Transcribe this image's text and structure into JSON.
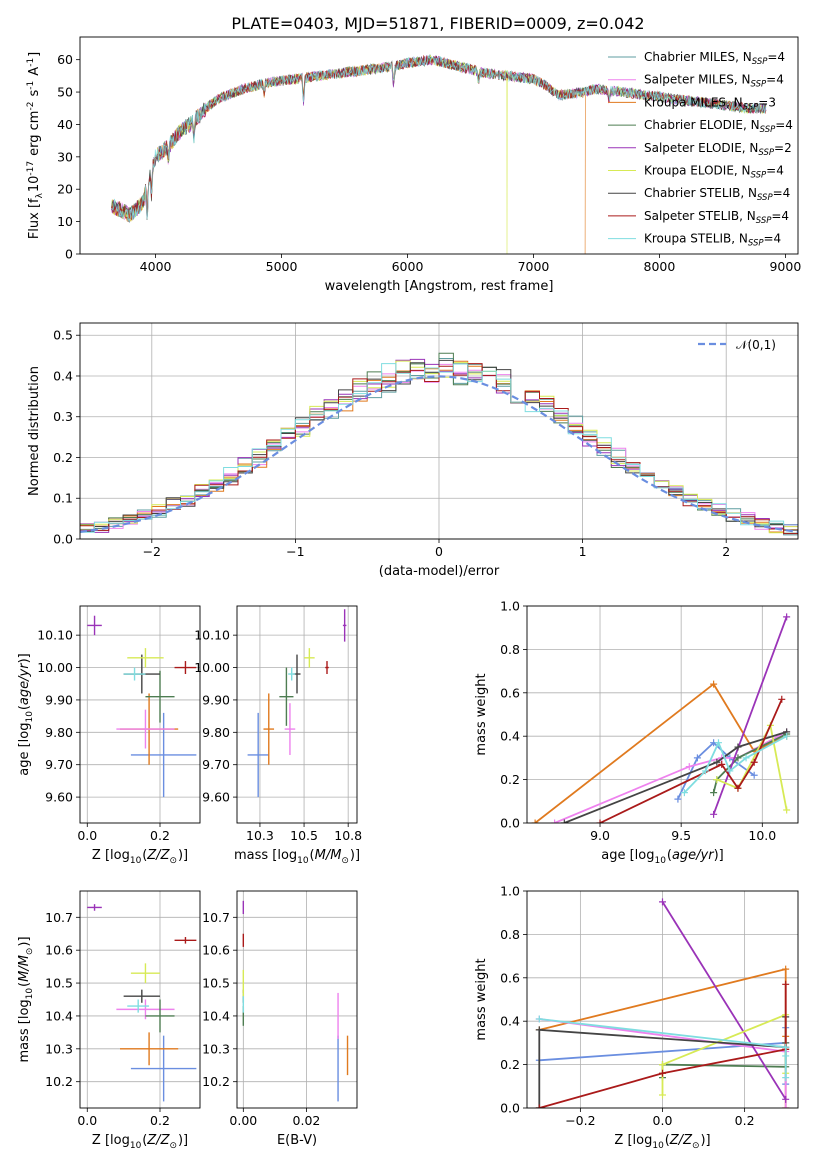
{
  "figure": {
    "title": "PLATE=0403, MJD=51871, FIBERID=0009, z=0.042"
  },
  "models": [
    {
      "name": "Chabrier MILES, N$_{SSP}$=4",
      "main": "Chabrier MILES, N",
      "n": "4",
      "color": "#5f9ea0"
    },
    {
      "name": "Salpeter MILES, N$_{SSP}$=4",
      "main": "Salpeter MILES, N",
      "n": "4",
      "color": "#ee82ee"
    },
    {
      "name": "Kroupa MILES, N$_{SSP}$=3",
      "main": "Kroupa MILES, N",
      "n": "3",
      "color": "#e07a1f"
    },
    {
      "name": "Chabrier ELODIE, N$_{SSP}$=4",
      "main": "Chabrier ELODIE, N",
      "n": "4",
      "color": "#4e7d52"
    },
    {
      "name": "Salpeter ELODIE, N$_{SSP}$=2",
      "main": "Salpeter ELODIE, N",
      "n": "2",
      "color": "#9a33b8"
    },
    {
      "name": "Kroupa ELODIE, N$_{SSP}$=4",
      "main": "Kroupa ELODIE, N",
      "n": "4",
      "color": "#d7ea55"
    },
    {
      "name": "Chabrier STELIB, N$_{SSP}$=4",
      "main": "Chabrier STELIB, N",
      "n": "4",
      "color": "#444444"
    },
    {
      "name": "Salpeter STELIB, N$_{SSP}$=4",
      "main": "Salpeter STELIB, N",
      "n": "4",
      "color": "#aa1a1a"
    },
    {
      "name": "Kroupa STELIB, N$_{SSP}$=4",
      "main": "Kroupa STELIB, N",
      "n": "4",
      "color": "#7fdde0"
    }
  ],
  "subscript_ssp": "SSP",
  "chart_data": [
    {
      "type": "line",
      "id": "spectrum",
      "xlabel": "wavelength [Angstrom, rest frame]",
      "ylabel": "Flux [f$_\\lambda$10$^{-17}$ erg cm$^{-2}$ s$^{-1}$ A$^{-1}$]",
      "xlim": [
        3400,
        9100
      ],
      "ylim": [
        0,
        67
      ],
      "xticks": [
        4000,
        5000,
        6000,
        7000,
        8000,
        9000
      ],
      "yticks": [
        0,
        10,
        20,
        30,
        40,
        50,
        60
      ],
      "legend": "upper right",
      "continuum": {
        "x": [
          3650,
          3800,
          3900,
          3950,
          4000,
          4100,
          4200,
          4300,
          4400,
          4500,
          4700,
          4900,
          5100,
          5300,
          5500,
          5700,
          5900,
          6000,
          6200,
          6400,
          6600,
          6800,
          7000,
          7100,
          7200,
          7400,
          7500,
          7700,
          7900,
          8100,
          8300,
          8500,
          8700,
          8850
        ],
        "y": [
          15,
          12,
          16,
          24,
          30,
          33,
          38,
          41,
          45,
          48,
          51,
          53,
          54,
          55,
          56,
          57,
          58,
          59,
          60,
          58,
          56,
          55,
          54,
          52,
          49,
          50,
          51,
          50,
          49,
          48,
          47,
          46,
          45,
          45
        ]
      },
      "drops": [
        {
          "series": "Kroupa ELODIE, N$_{SSP}$=4",
          "x": 6790
        },
        {
          "series": "Kroupa MILES, N$_{SSP}$=3",
          "x": 7410
        }
      ]
    },
    {
      "type": "step",
      "id": "residuals",
      "xlabel": "(data-model)/error",
      "ylabel": "Normed distribution",
      "xlim": [
        -2.5,
        2.5
      ],
      "ylim": [
        0,
        0.53
      ],
      "xticks": [
        -2,
        -1,
        0,
        1,
        2
      ],
      "yticks": [
        0.0,
        0.1,
        0.2,
        0.3,
        0.4,
        0.5
      ],
      "grid": true,
      "bin_width": 0.1,
      "reference": {
        "label": "$\\mathcal{N}(0,1)$",
        "color": "#6a8ee0"
      },
      "legend": "upper right"
    },
    {
      "type": "scatter",
      "id": "age-vs-Z",
      "xlabel": "Z [log$_{10}$($Z/Z_\\odot$)]",
      "ylabel": "age  [log$_{10}$($age/yr$)]",
      "xlim": [
        -0.02,
        0.31
      ],
      "ylim": [
        9.52,
        10.19
      ],
      "xticks": [
        0.0,
        0.2
      ],
      "yticks": [
        9.6,
        9.7,
        9.8,
        9.9,
        10.0,
        10.1
      ],
      "grid": true,
      "points": [
        {
          "x": 0.21,
          "y": 9.73,
          "xerr": 0.09,
          "yerr": 0.13,
          "color": "#6a8ee0"
        },
        {
          "x": 0.17,
          "y": 9.81,
          "xerr": 0.08,
          "yerr": 0.11,
          "color": "#e07a1f"
        },
        {
          "x": 0.16,
          "y": 9.81,
          "xerr": 0.08,
          "yerr": 0.06,
          "color": "#ee82ee"
        },
        {
          "x": 0.2,
          "y": 9.91,
          "xerr": 0.04,
          "yerr": 0.08,
          "color": "#4e7d52"
        },
        {
          "x": 0.15,
          "y": 9.98,
          "xerr": 0.05,
          "yerr": 0.06,
          "color": "#444444"
        },
        {
          "x": 0.13,
          "y": 9.98,
          "xerr": 0.03,
          "yerr": 0.02,
          "color": "#7fdde0"
        },
        {
          "x": 0.16,
          "y": 10.03,
          "xerr": 0.05,
          "yerr": 0.03,
          "color": "#d7ea55"
        },
        {
          "x": 0.27,
          "y": 10.0,
          "xerr": 0.03,
          "yerr": 0.02,
          "color": "#aa1a1a"
        },
        {
          "x": 0.02,
          "y": 10.13,
          "xerr": 0.02,
          "yerr": 0.03,
          "color": "#9a33b8"
        }
      ]
    },
    {
      "type": "scatter",
      "id": "age-vs-mass",
      "xlabel": "mass [log$_{10}$($M/M_\\odot$)]",
      "ylabel": "",
      "xlim": [
        10.12,
        10.8
      ],
      "ylim": [
        9.52,
        10.19
      ],
      "xticks": [
        10.25,
        10.5,
        10.75
      ],
      "yticks": [
        9.6,
        9.7,
        9.8,
        9.9,
        10.0,
        10.1
      ],
      "grid": true,
      "points": [
        {
          "x": 10.24,
          "y": 9.73,
          "xerr": 0.06,
          "yerr": 0.13,
          "color": "#6a8ee0"
        },
        {
          "x": 10.3,
          "y": 9.81,
          "xerr": 0.03,
          "yerr": 0.11,
          "color": "#e07a1f"
        },
        {
          "x": 10.42,
          "y": 9.81,
          "xerr": 0.03,
          "yerr": 0.08,
          "color": "#ee82ee"
        },
        {
          "x": 10.4,
          "y": 9.91,
          "xerr": 0.04,
          "yerr": 0.09,
          "color": "#4e7d52"
        },
        {
          "x": 10.46,
          "y": 9.98,
          "xerr": 0.02,
          "yerr": 0.06,
          "color": "#444444"
        },
        {
          "x": 10.43,
          "y": 9.98,
          "xerr": 0.02,
          "yerr": 0.02,
          "color": "#7fdde0"
        },
        {
          "x": 10.53,
          "y": 10.03,
          "xerr": 0.03,
          "yerr": 0.03,
          "color": "#d7ea55"
        },
        {
          "x": 10.63,
          "y": 10.0,
          "xerr": 0.01,
          "yerr": 0.02,
          "color": "#aa1a1a"
        },
        {
          "x": 10.73,
          "y": 10.13,
          "xerr": 0.01,
          "yerr": 0.05,
          "color": "#9a33b8"
        }
      ]
    },
    {
      "type": "line",
      "id": "weight-vs-age",
      "xlabel": "age  [log$_{10}$($age/yr$)]",
      "ylabel": "mass weight",
      "xlim": [
        8.55,
        10.22
      ],
      "ylim": [
        0,
        1.0
      ],
      "xticks": [
        9.0,
        9.5,
        10.0
      ],
      "yticks": [
        0.0,
        0.2,
        0.4,
        0.6,
        0.8,
        1.0
      ],
      "grid": true,
      "series": [
        {
          "color": "#e07a1f",
          "x": [
            8.6,
            9.7,
            9.95,
            10.15
          ],
          "y": [
            0.0,
            0.64,
            0.33,
            0.4
          ]
        },
        {
          "color": "#6a8ee0",
          "x": [
            9.48,
            9.6,
            9.7,
            9.8,
            9.95
          ],
          "y": [
            0.11,
            0.3,
            0.37,
            0.3,
            0.22
          ]
        },
        {
          "color": "#ee82ee",
          "x": [
            8.72,
            9.55,
            9.75,
            9.85,
            10.15
          ],
          "y": [
            0.0,
            0.26,
            0.3,
            0.3,
            0.42
          ]
        },
        {
          "color": "#4e7d52",
          "x": [
            9.7,
            9.72,
            9.85,
            10.15
          ],
          "y": [
            0.14,
            0.2,
            0.3,
            0.41
          ]
        },
        {
          "color": "#9a33b8",
          "x": [
            9.7,
            10.15
          ],
          "y": [
            0.04,
            0.95
          ]
        },
        {
          "color": "#d7ea55",
          "x": [
            9.72,
            9.85,
            10.05,
            10.15
          ],
          "y": [
            0.2,
            0.16,
            0.45,
            0.06
          ]
        },
        {
          "color": "#444444",
          "x": [
            8.78,
            9.72,
            9.85,
            10.15
          ],
          "y": [
            0.0,
            0.28,
            0.35,
            0.42
          ]
        },
        {
          "color": "#aa1a1a",
          "x": [
            9.0,
            9.75,
            9.85,
            9.95,
            10.12
          ],
          "y": [
            0.0,
            0.27,
            0.16,
            0.28,
            0.57
          ]
        },
        {
          "color": "#7fdde0",
          "x": [
            9.52,
            9.65,
            9.73,
            9.8,
            9.9,
            10.15
          ],
          "y": [
            0.14,
            0.24,
            0.37,
            0.24,
            0.3,
            0.4
          ]
        }
      ]
    },
    {
      "type": "scatter",
      "id": "mass-vs-Z",
      "xlabel": "Z [log$_{10}$($Z/Z_\\odot$)]",
      "ylabel": "mass [log$_{10}$($M/M_\\odot$)]",
      "xlim": [
        -0.02,
        0.31
      ],
      "ylim": [
        10.12,
        10.78
      ],
      "xticks": [
        0.0,
        0.2
      ],
      "yticks": [
        10.2,
        10.3,
        10.4,
        10.5,
        10.6,
        10.7
      ],
      "grid": true,
      "points": [
        {
          "x": 0.21,
          "y": 10.24,
          "xerr": 0.09,
          "yerr": 0.1,
          "color": "#6a8ee0"
        },
        {
          "x": 0.17,
          "y": 10.3,
          "xerr": 0.08,
          "yerr": 0.05,
          "color": "#e07a1f"
        },
        {
          "x": 0.16,
          "y": 10.42,
          "xerr": 0.08,
          "yerr": 0.03,
          "color": "#ee82ee"
        },
        {
          "x": 0.2,
          "y": 10.4,
          "xerr": 0.04,
          "yerr": 0.05,
          "color": "#4e7d52"
        },
        {
          "x": 0.15,
          "y": 10.46,
          "xerr": 0.05,
          "yerr": 0.02,
          "color": "#444444"
        },
        {
          "x": 0.14,
          "y": 10.43,
          "xerr": 0.03,
          "yerr": 0.02,
          "color": "#7fdde0"
        },
        {
          "x": 0.16,
          "y": 10.53,
          "xerr": 0.04,
          "yerr": 0.03,
          "color": "#d7ea55"
        },
        {
          "x": 0.27,
          "y": 10.63,
          "xerr": 0.03,
          "yerr": 0.01,
          "color": "#aa1a1a"
        },
        {
          "x": 0.02,
          "y": 10.73,
          "xerr": 0.02,
          "yerr": 0.01,
          "color": "#9a33b8"
        }
      ]
    },
    {
      "type": "scatter",
      "id": "mass-vs-ebv",
      "xlabel": "E(B-V)",
      "ylabel": "",
      "xlim": [
        -0.002,
        0.036
      ],
      "ylim": [
        10.12,
        10.78
      ],
      "xticks": [
        0.0,
        0.02
      ],
      "yticks": [
        10.2,
        10.3,
        10.4,
        10.5,
        10.6,
        10.7
      ],
      "grid": true,
      "points": [
        {
          "x": 0.03,
          "y": 10.24,
          "xerr": 0.0,
          "yerr": 0.1,
          "color": "#6a8ee0"
        },
        {
          "x": 0.033,
          "y": 10.28,
          "xerr": 0.0,
          "yerr": 0.06,
          "color": "#e07a1f"
        },
        {
          "x": 0.03,
          "y": 10.4,
          "xerr": 0.0,
          "yerr": 0.07,
          "color": "#ee82ee"
        },
        {
          "x": 0.0,
          "y": 10.4,
          "xerr": 0.0,
          "yerr": 0.03,
          "color": "#4e7d52"
        },
        {
          "x": 0.0,
          "y": 10.46,
          "xerr": 0.0,
          "yerr": 0.02,
          "color": "#444444"
        },
        {
          "x": 0.0,
          "y": 10.44,
          "xerr": 0.0,
          "yerr": 0.03,
          "color": "#7fdde0"
        },
        {
          "x": 0.0,
          "y": 10.5,
          "xerr": 0.0,
          "yerr": 0.04,
          "color": "#d7ea55"
        },
        {
          "x": 0.0,
          "y": 10.63,
          "xerr": 0.0,
          "yerr": 0.02,
          "color": "#aa1a1a"
        },
        {
          "x": 0.0,
          "y": 10.73,
          "xerr": 0.0,
          "yerr": 0.02,
          "color": "#9a33b8"
        }
      ]
    },
    {
      "type": "line",
      "id": "weight-vs-Z",
      "xlabel": "Z [log$_{10}$($Z/Z_\\odot$)]",
      "ylabel": "mass weight",
      "xlim": [
        -0.33,
        0.33
      ],
      "ylim": [
        0,
        1.0
      ],
      "xticks": [
        -0.2,
        0.0,
        0.2
      ],
      "yticks": [
        0.0,
        0.2,
        0.4,
        0.6,
        0.8,
        1.0
      ],
      "grid": true,
      "series": [
        {
          "color": "#e07a1f",
          "x": [
            -0.3,
            0.3,
            0.3,
            0.3
          ],
          "y": [
            0.36,
            0.64,
            0.33,
            0.0
          ]
        },
        {
          "color": "#6a8ee0",
          "x": [
            -0.3,
            0.3,
            0.3,
            0.3
          ],
          "y": [
            0.22,
            0.3,
            0.11,
            0.37
          ]
        },
        {
          "color": "#ee82ee",
          "x": [
            -0.3,
            0.3,
            0.3,
            0.3
          ],
          "y": [
            0.41,
            0.26,
            0.3,
            0.0
          ]
        },
        {
          "color": "#4e7d52",
          "x": [
            0.0,
            0.0,
            0.3,
            0.3
          ],
          "y": [
            0.14,
            0.2,
            0.19,
            0.3
          ]
        },
        {
          "color": "#9a33b8",
          "x": [
            0.0,
            0.3
          ],
          "y": [
            0.95,
            0.04
          ]
        },
        {
          "color": "#d7ea55",
          "x": [
            0.0,
            0.0,
            0.3,
            0.3
          ],
          "y": [
            0.06,
            0.2,
            0.43,
            0.16
          ]
        },
        {
          "color": "#444444",
          "x": [
            -0.3,
            -0.3,
            0.3,
            0.3
          ],
          "y": [
            0.0,
            0.36,
            0.28,
            0.42
          ]
        },
        {
          "color": "#aa1a1a",
          "x": [
            -0.3,
            0.0,
            0.3,
            0.3,
            0.3
          ],
          "y": [
            0.0,
            0.16,
            0.27,
            0.57,
            0.27
          ]
        },
        {
          "color": "#7fdde0",
          "x": [
            -0.3,
            0.3,
            0.3,
            0.3
          ],
          "y": [
            0.41,
            0.28,
            0.14,
            0.24
          ]
        }
      ]
    }
  ]
}
